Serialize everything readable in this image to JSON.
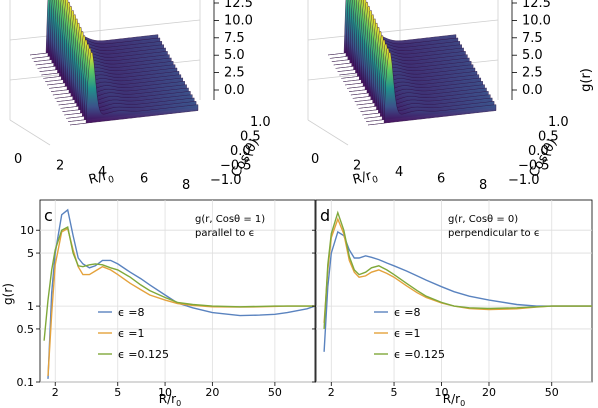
{
  "colors": {
    "blue": "#5a83bf",
    "orange": "#e4a23c",
    "green": "#7fa83a",
    "axis": "#000000",
    "grid": "#dedede"
  },
  "top_panels": [
    {
      "side": "left",
      "x_label_main": "R/r",
      "x_label_sub": "0",
      "x_ticks": [
        "0",
        "2",
        "4",
        "6",
        "8"
      ],
      "y_label": "Cos(θ)",
      "y_ticks": [
        "1.0",
        "0.5",
        "0.0",
        "−0.5",
        "−1.0"
      ],
      "z_label": "",
      "z_ticks": [
        "12.5",
        "10.0",
        "7.5",
        "5.0",
        "2.5",
        "0.0"
      ]
    },
    {
      "side": "right",
      "x_label_main": "R/r",
      "x_label_sub": "0",
      "x_ticks": [
        "0",
        "2",
        "4",
        "6",
        "8"
      ],
      "y_label": "Cos(θ)",
      "y_ticks": [
        "1.0",
        "0.5",
        "0.0",
        "−0.5",
        "−1.0"
      ],
      "z_label": "g(r)",
      "z_ticks": [
        "12.5",
        "10.0",
        "7.5",
        "5.0",
        "2.5",
        "0.0"
      ]
    }
  ],
  "chart_data": [
    {
      "type": "line",
      "panel": "c",
      "annotation_line1": "g(r, Cosθ = 1)",
      "annotation_line2": "parallel to ϵ",
      "xscale": "log",
      "yscale": "log",
      "xlim": [
        1.6,
        90
      ],
      "ylim": [
        0.1,
        25
      ],
      "xticks": [
        2,
        5,
        10,
        20,
        50
      ],
      "yticks": [
        0.1,
        0.5,
        1,
        5,
        10
      ],
      "ytick_labels": [
        "0.1",
        "0.5",
        "1",
        "5",
        "10"
      ],
      "xtick_labels": [
        "2",
        "5",
        "10",
        "20",
        "50"
      ],
      "xlabel_main": "R/r",
      "xlabel_sub": "0",
      "ylabel": "g(r)",
      "legend": "lower-left",
      "series": [
        {
          "name": "ϵ =8",
          "color_key": "blue",
          "x": [
            1.8,
            1.9,
            2.0,
            2.2,
            2.4,
            2.6,
            2.8,
            3.0,
            3.3,
            3.6,
            4.0,
            4.5,
            5.0,
            6.0,
            7.0,
            8.0,
            10.0,
            12.0,
            15.0,
            20.0,
            30.0,
            40.0,
            50.0,
            60.0,
            80.0,
            90.0
          ],
          "y": [
            0.11,
            1.5,
            5.0,
            16.0,
            18.5,
            8.5,
            4.3,
            3.6,
            3.2,
            3.4,
            4.0,
            4.0,
            3.6,
            2.8,
            2.3,
            1.9,
            1.4,
            1.1,
            0.95,
            0.82,
            0.75,
            0.76,
            0.78,
            0.82,
            0.92,
            1.0
          ]
        },
        {
          "name": "ϵ =1",
          "color_key": "orange",
          "x": [
            1.8,
            1.9,
            2.0,
            2.2,
            2.4,
            2.6,
            2.8,
            3.0,
            3.3,
            3.6,
            4.0,
            4.5,
            5.0,
            6.0,
            7.0,
            8.0,
            10.0,
            12.0,
            15.0,
            20.0,
            30.0,
            40.0,
            50.0,
            60.0,
            80.0,
            90.0
          ],
          "y": [
            0.12,
            0.8,
            3.5,
            9.5,
            10.5,
            5.5,
            3.3,
            2.6,
            2.6,
            2.9,
            3.3,
            3.0,
            2.6,
            2.0,
            1.65,
            1.4,
            1.2,
            1.08,
            1.02,
            0.98,
            0.97,
            0.98,
            0.99,
            1.0,
            1.0,
            1.0
          ]
        },
        {
          "name": "ϵ =0.125",
          "color_key": "green",
          "x": [
            1.7,
            1.8,
            1.9,
            2.0,
            2.2,
            2.4,
            2.6,
            2.8,
            3.0,
            3.3,
            3.6,
            4.0,
            4.5,
            5.0,
            6.0,
            7.0,
            8.0,
            10.0,
            12.0,
            15.0,
            20.0,
            30.0,
            40.0,
            50.0,
            60.0,
            80.0,
            90.0
          ],
          "y": [
            0.35,
            1.2,
            3.0,
            5.5,
            10.0,
            11.0,
            5.0,
            3.4,
            3.3,
            3.5,
            3.6,
            3.5,
            3.2,
            3.0,
            2.4,
            1.9,
            1.6,
            1.3,
            1.12,
            1.05,
            1.0,
            0.98,
            0.99,
            1.0,
            1.0,
            1.0,
            1.0
          ]
        }
      ]
    },
    {
      "type": "line",
      "panel": "d",
      "annotation_line1": "g(r, Cosθ = 0)",
      "annotation_line2": "perpendicular to ϵ",
      "xscale": "log",
      "yscale": "log",
      "xlim": [
        1.6,
        90
      ],
      "ylim": [
        0.1,
        25
      ],
      "xticks": [
        2,
        5,
        10,
        20,
        50
      ],
      "yticks": [
        0.1,
        0.5,
        1,
        5,
        10
      ],
      "ytick_labels": [
        "0.1",
        "0.5",
        "1",
        "5",
        "10"
      ],
      "xtick_labels": [
        "2",
        "5",
        "10",
        "20",
        "50"
      ],
      "xlabel_main": "R/r",
      "xlabel_sub": "0",
      "ylabel": "",
      "legend": "lower-left",
      "series": [
        {
          "name": "ϵ =8",
          "color_key": "blue",
          "x": [
            1.8,
            1.9,
            2.0,
            2.2,
            2.4,
            2.6,
            2.8,
            3.0,
            3.3,
            3.6,
            4.0,
            4.5,
            5.0,
            6.0,
            7.0,
            8.0,
            10.0,
            12.0,
            15.0,
            20.0,
            30.0,
            40.0,
            50.0,
            60.0,
            80.0,
            90.0
          ],
          "y": [
            0.25,
            1.8,
            5.0,
            9.5,
            8.5,
            5.5,
            4.3,
            4.3,
            4.6,
            4.4,
            4.1,
            3.7,
            3.4,
            2.9,
            2.5,
            2.2,
            1.8,
            1.55,
            1.35,
            1.2,
            1.05,
            1.0,
            1.0,
            1.0,
            1.0,
            1.0
          ]
        },
        {
          "name": "ϵ =1",
          "color_key": "orange",
          "x": [
            1.8,
            1.9,
            2.0,
            2.2,
            2.4,
            2.6,
            2.8,
            3.0,
            3.3,
            3.6,
            4.0,
            4.5,
            5.0,
            6.0,
            7.0,
            8.0,
            10.0,
            12.0,
            15.0,
            20.0,
            30.0,
            40.0,
            50.0,
            60.0,
            80.0,
            90.0
          ],
          "y": [
            0.6,
            3.0,
            8.0,
            14.0,
            9.0,
            4.0,
            2.8,
            2.4,
            2.5,
            2.8,
            3.0,
            2.7,
            2.4,
            1.85,
            1.5,
            1.3,
            1.1,
            1.0,
            0.93,
            0.9,
            0.92,
            0.97,
            1.0,
            1.0,
            1.0,
            1.0
          ]
        },
        {
          "name": "ϵ =0.125",
          "color_key": "green",
          "x": [
            1.8,
            1.9,
            2.0,
            2.2,
            2.4,
            2.6,
            2.8,
            3.0,
            3.3,
            3.6,
            4.0,
            4.5,
            5.0,
            6.0,
            7.0,
            8.0,
            10.0,
            12.0,
            15.0,
            20.0,
            30.0,
            40.0,
            50.0,
            60.0,
            80.0,
            90.0
          ],
          "y": [
            0.5,
            3.5,
            9.0,
            17.0,
            10.0,
            4.5,
            3.0,
            2.6,
            2.8,
            3.2,
            3.4,
            3.0,
            2.6,
            2.0,
            1.6,
            1.35,
            1.12,
            1.0,
            0.95,
            0.93,
            0.95,
            0.98,
            1.0,
            1.0,
            1.0,
            1.0
          ]
        }
      ]
    }
  ]
}
